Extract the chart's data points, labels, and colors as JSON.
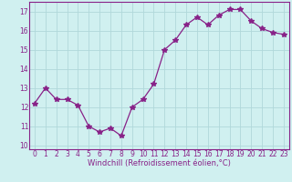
{
  "x": [
    0,
    1,
    2,
    3,
    4,
    5,
    6,
    7,
    8,
    9,
    10,
    11,
    12,
    13,
    14,
    15,
    16,
    17,
    18,
    19,
    20,
    21,
    22,
    23
  ],
  "y": [
    12.2,
    13.0,
    12.4,
    12.4,
    12.1,
    11.0,
    10.7,
    10.9,
    10.5,
    12.0,
    12.4,
    13.2,
    15.0,
    15.5,
    16.3,
    16.7,
    16.3,
    16.8,
    17.1,
    17.1,
    16.5,
    16.1,
    15.9,
    15.8
  ],
  "line_color": "#882288",
  "marker": "*",
  "marker_size": 4,
  "bg_color": "#d0f0f0",
  "grid_color": "#b0d8da",
  "xlabel": "Windchill (Refroidissement éolien,°C)",
  "xlabel_color": "#882288",
  "tick_color": "#882288",
  "ylim": [
    9.8,
    17.5
  ],
  "yticks": [
    10,
    11,
    12,
    13,
    14,
    15,
    16,
    17
  ],
  "xlim": [
    -0.5,
    23.5
  ],
  "xticks": [
    0,
    1,
    2,
    3,
    4,
    5,
    6,
    7,
    8,
    9,
    10,
    11,
    12,
    13,
    14,
    15,
    16,
    17,
    18,
    19,
    20,
    21,
    22,
    23
  ],
  "spine_color": "#882288",
  "tick_fontsize": 5.5,
  "xlabel_fontsize": 6.0
}
